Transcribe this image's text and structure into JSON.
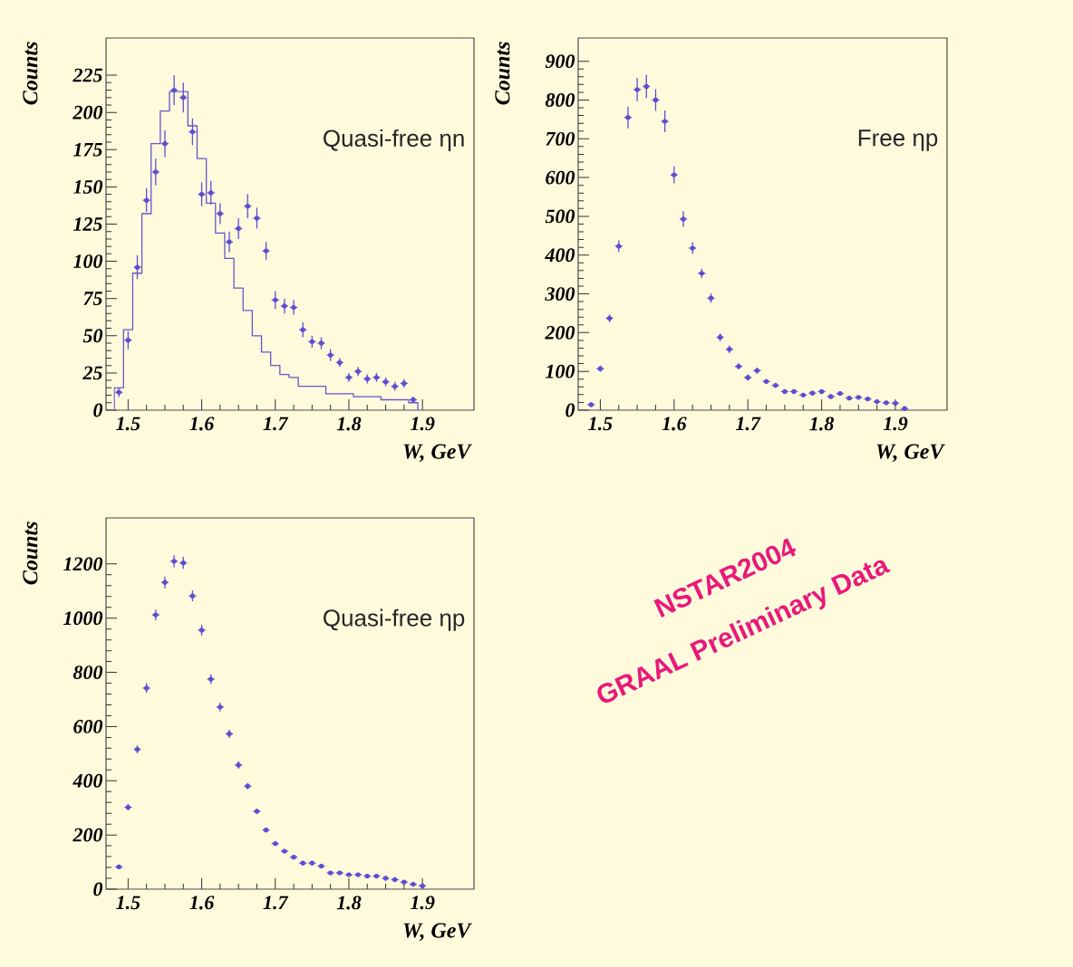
{
  "chart_data": [
    {
      "type": "scatter",
      "xlabel": "W, GeV",
      "ylabel": "Counts",
      "annotations": [
        "Quasi-free ηn"
      ],
      "xlim": [
        1.47,
        1.97
      ],
      "xticks": [
        1.5,
        1.6,
        1.7,
        1.8,
        1.9
      ],
      "ylim": [
        0,
        250
      ],
      "yticks": [
        0,
        25,
        50,
        75,
        100,
        125,
        150,
        175,
        200,
        225
      ],
      "series": [
        {
          "type": "scatter",
          "color": "#5b4fd0",
          "x": [
            1.4875,
            1.5,
            1.5125,
            1.525,
            1.5375,
            1.55,
            1.5625,
            1.575,
            1.5875,
            1.6,
            1.6125,
            1.625,
            1.6375,
            1.65,
            1.6625,
            1.675,
            1.6875,
            1.7,
            1.7125,
            1.725,
            1.7375,
            1.75,
            1.7625,
            1.775,
            1.7875,
            1.8,
            1.8125,
            1.825,
            1.8375,
            1.85,
            1.8625,
            1.875,
            1.8875
          ],
          "values": [
            12,
            47,
            96,
            141,
            160,
            179,
            215,
            210,
            187,
            145,
            146,
            132,
            113,
            122,
            137,
            129,
            107,
            74,
            70,
            69,
            54,
            46,
            45,
            37,
            32,
            22,
            26,
            21,
            22,
            19,
            16,
            18,
            7
          ],
          "errors": [
            3,
            6,
            8,
            8,
            9,
            9,
            10,
            10,
            9,
            8,
            8,
            7,
            7,
            7,
            8,
            7,
            6,
            6,
            5,
            5,
            5,
            4,
            4,
            4,
            3,
            3,
            3,
            3,
            3,
            3,
            3,
            3,
            2
          ],
          "xerrors": [
            0.005,
            0.005,
            0.005,
            0.005,
            0.005,
            0.005,
            0.005,
            0.005,
            0.005,
            0.005,
            0.005,
            0.005,
            0.005,
            0.005,
            0.005,
            0.005,
            0.005,
            0.005,
            0.005,
            0.005,
            0.005,
            0.005,
            0.005,
            0.005,
            0.005,
            0.005,
            0.005,
            0.005,
            0.005,
            0.005,
            0.005,
            0.005,
            0.005
          ]
        },
        {
          "type": "histogram",
          "color": "#6655cc",
          "bins": [
            1.48125,
            1.49375,
            1.50625,
            1.51875,
            1.53125,
            1.54375,
            1.55625,
            1.56875,
            1.58125,
            1.59375,
            1.60625,
            1.61875,
            1.63125,
            1.64375,
            1.65625,
            1.66875,
            1.68125,
            1.69375,
            1.70625,
            1.71875,
            1.73125,
            1.74375,
            1.75625,
            1.76875,
            1.78125,
            1.79375,
            1.80625,
            1.81875,
            1.83125,
            1.84375,
            1.85625,
            1.86875,
            1.88125,
            1.89375
          ],
          "values": [
            15,
            54,
            92,
            132,
            179,
            201,
            214,
            214,
            191,
            169,
            139,
            119,
            102,
            82,
            67,
            50,
            39,
            30,
            24,
            22,
            16,
            16,
            16,
            11,
            11,
            11,
            9,
            9,
            9,
            7,
            7,
            7,
            5
          ]
        }
      ]
    },
    {
      "type": "scatter",
      "xlabel": "W, GeV",
      "ylabel": "Counts",
      "annotations": [
        "Free ηp",
        "NSTAR2004",
        "GRAAL Preliminary Data"
      ],
      "xlim": [
        1.47,
        1.97
      ],
      "xticks": [
        1.5,
        1.6,
        1.7,
        1.8,
        1.9
      ],
      "ylim": [
        0,
        960
      ],
      "yticks": [
        0,
        100,
        200,
        300,
        400,
        500,
        600,
        700,
        800,
        900
      ],
      "series": [
        {
          "color": "#5b4fd0",
          "x": [
            1.4875,
            1.5,
            1.5125,
            1.525,
            1.5375,
            1.55,
            1.5625,
            1.575,
            1.5875,
            1.6,
            1.6125,
            1.625,
            1.6375,
            1.65,
            1.6625,
            1.675,
            1.6875,
            1.7,
            1.7125,
            1.725,
            1.7375,
            1.75,
            1.7625,
            1.775,
            1.7875,
            1.8,
            1.8125,
            1.825,
            1.8375,
            1.85,
            1.8625,
            1.875,
            1.8875,
            1.9,
            1.9125
          ],
          "values": [
            14,
            107,
            237,
            423,
            755,
            827,
            835,
            800,
            745,
            607,
            493,
            418,
            353,
            289,
            188,
            157,
            113,
            84,
            102,
            74,
            64,
            48,
            48,
            39,
            44,
            48,
            35,
            43,
            31,
            33,
            29,
            22,
            19,
            18,
            4
          ],
          "errors": [
            5,
            8,
            10,
            15,
            28,
            30,
            30,
            28,
            28,
            22,
            20,
            15,
            12,
            12,
            10,
            10,
            8,
            8,
            8,
            6,
            6,
            5,
            5,
            5,
            5,
            5,
            5,
            5,
            4,
            4,
            4,
            4,
            4,
            4,
            null
          ],
          "xerrors": [
            0.005,
            0.005,
            0.005,
            0.005,
            0.005,
            0.005,
            0.005,
            0.005,
            0.005,
            0.005,
            0.005,
            0.005,
            0.005,
            0.005,
            0.005,
            0.005,
            0.005,
            0.005,
            0.005,
            0.005,
            0.005,
            0.005,
            0.005,
            0.005,
            0.005,
            0.005,
            0.005,
            0.005,
            0.005,
            0.005,
            0.005,
            0.005,
            0.005,
            0.005,
            0.005
          ]
        }
      ]
    },
    {
      "type": "scatter",
      "xlabel": "W, GeV",
      "ylabel": "Counts",
      "annotations": [
        "Quasi-free ηp"
      ],
      "xlim": [
        1.47,
        1.97
      ],
      "xticks": [
        1.5,
        1.6,
        1.7,
        1.8,
        1.9
      ],
      "ylim": [
        0,
        1370
      ],
      "yticks": [
        0,
        200,
        400,
        600,
        800,
        1000,
        1200
      ],
      "series": [
        {
          "color": "#5b4fd0",
          "x": [
            1.4875,
            1.5,
            1.5125,
            1.525,
            1.5375,
            1.55,
            1.5625,
            1.575,
            1.5875,
            1.6,
            1.6125,
            1.625,
            1.6375,
            1.65,
            1.6625,
            1.675,
            1.6875,
            1.7,
            1.7125,
            1.725,
            1.7375,
            1.75,
            1.7625,
            1.775,
            1.7875,
            1.8,
            1.8125,
            1.825,
            1.8375,
            1.85,
            1.8625,
            1.875,
            1.8875,
            1.9
          ],
          "values": [
            82,
            302,
            516,
            742,
            1012,
            1132,
            1210,
            1204,
            1082,
            956,
            775,
            672,
            573,
            458,
            380,
            287,
            218,
            168,
            140,
            118,
            96,
            96,
            85,
            60,
            60,
            53,
            53,
            48,
            48,
            40,
            35,
            26,
            18,
            12
          ],
          "errors": [
            8,
            12,
            15,
            18,
            20,
            22,
            22,
            22,
            20,
            20,
            18,
            16,
            15,
            14,
            12,
            10,
            null,
            null,
            null,
            null,
            null,
            null,
            null,
            null,
            null,
            null,
            null,
            null,
            null,
            null,
            null,
            null,
            null,
            null
          ],
          "xerrors": [
            0.005,
            0.005,
            0.005,
            0.005,
            0.005,
            0.005,
            0.005,
            0.005,
            0.005,
            0.005,
            0.005,
            0.005,
            0.005,
            0.005,
            0.005,
            0.005,
            0.005,
            0.005,
            0.005,
            0.005,
            0.005,
            0.005,
            0.005,
            0.005,
            0.005,
            0.005,
            0.005,
            0.005,
            0.005,
            0.005,
            0.005,
            0.005,
            0.005,
            0.005
          ]
        }
      ]
    }
  ]
}
